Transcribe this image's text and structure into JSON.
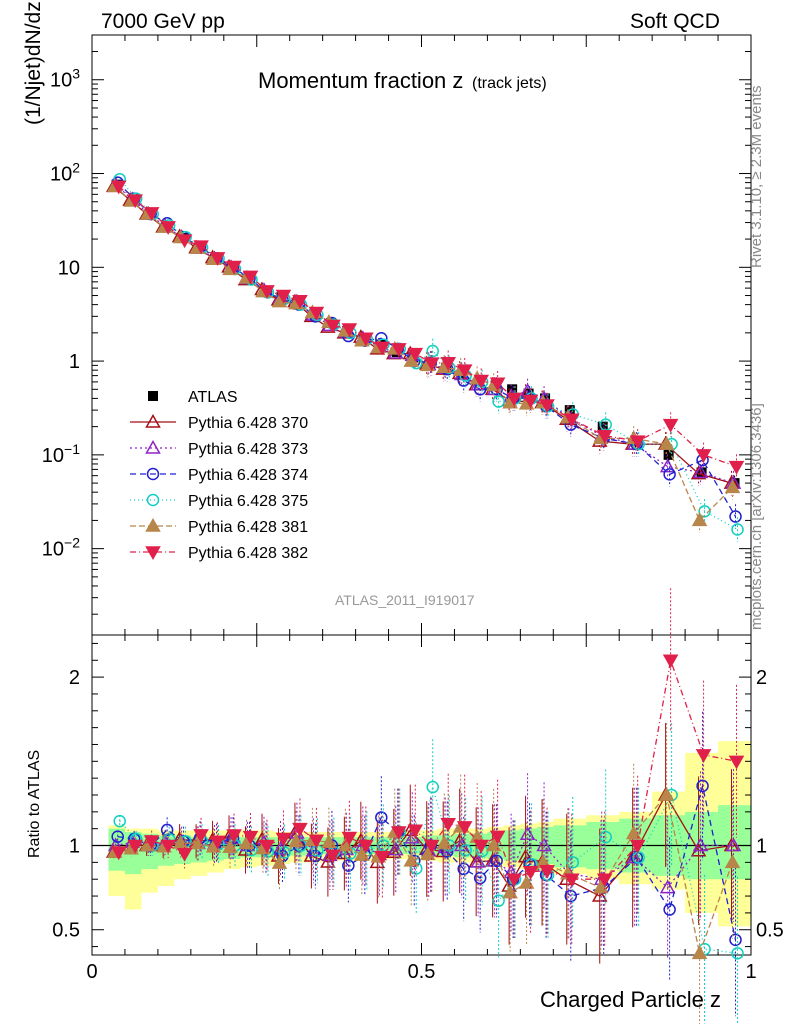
{
  "header": {
    "left": "7000 GeV pp",
    "right": "Soft QCD"
  },
  "side": {
    "rivet": "Rivet 3.1.10, ≥ 2.3M events",
    "mcplots": "mcplots.cern.ch [arXiv:1306.3436]"
  },
  "chart_data": [
    {
      "type": "line",
      "panel": "main",
      "title_main": "Momentum fraction z",
      "title_sub": "(track jets)",
      "xlabel": "Charged Particle z",
      "ylabel": "(1/Njet)dN/dz",
      "yscale": "log",
      "xlim": [
        0,
        1
      ],
      "ylim": [
        0.0012,
        3000
      ],
      "y_ticks": [
        "10^3",
        "10^2",
        "10",
        "1",
        "10^-1",
        "10^-2"
      ],
      "analysis_label": "ATLAS_2011_I919017",
      "x": [
        0.0375,
        0.0625,
        0.0875,
        0.1125,
        0.1375,
        0.1625,
        0.1875,
        0.2125,
        0.2375,
        0.2625,
        0.2875,
        0.3125,
        0.3375,
        0.3625,
        0.3875,
        0.4125,
        0.4375,
        0.4625,
        0.4875,
        0.5125,
        0.5375,
        0.5625,
        0.5875,
        0.6125,
        0.6375,
        0.6625,
        0.6875,
        0.725,
        0.775,
        0.825,
        0.875,
        0.925,
        0.975
      ],
      "series": [
        {
          "name": "ATLAS",
          "color": "#000000",
          "marker": "square",
          "dash": "",
          "values": [
            76,
            52,
            37,
            27,
            20.5,
            15.8,
            12.3,
            9.6,
            7.6,
            5.6,
            4.8,
            4.0,
            3.2,
            2.55,
            2.1,
            1.75,
            1.5,
            1.25,
            1.1,
            0.95,
            0.85,
            0.72,
            0.62,
            0.55,
            0.5,
            0.45,
            0.4,
            0.3,
            0.2,
            0.14,
            0.1,
            0.065,
            0.05
          ],
          "errors": [
            2,
            1.5,
            1,
            0.8,
            0.6,
            0.5,
            0.4,
            0.3,
            0.3,
            0.2,
            0.2,
            0.2,
            0.15,
            0.1,
            0.1,
            0.08,
            0.07,
            0.06,
            0.05,
            0.05,
            0.05,
            0.04,
            0.04,
            0.04,
            0.04,
            0.04,
            0.04,
            0.03,
            0.02,
            0.02,
            0.015,
            0.01,
            0.01
          ]
        },
        {
          "name": "Pythia 6.428 370",
          "color": "#a50f15",
          "marker": "triangle-up-open",
          "dash": "",
          "values": [
            73,
            52,
            37,
            27,
            21.3,
            16.2,
            12.7,
            10.1,
            7.4,
            5.8,
            4.5,
            4.3,
            3.0,
            2.3,
            2.0,
            1.8,
            1.35,
            1.2,
            1.2,
            0.93,
            0.82,
            0.74,
            0.56,
            0.5,
            0.38,
            0.42,
            0.36,
            0.24,
            0.14,
            0.13,
            0.13,
            0.063,
            0.05
          ]
        },
        {
          "name": "Pythia 6.428 373",
          "color": "#8e24c8",
          "marker": "triangle-up-open",
          "dash": "2,3",
          "values": [
            76,
            53,
            37,
            27.5,
            21,
            16,
            12.4,
            10,
            7.6,
            5.7,
            4.7,
            4.3,
            3.1,
            2.4,
            2.05,
            1.75,
            1.42,
            1.22,
            1.15,
            0.92,
            0.84,
            0.72,
            0.56,
            0.5,
            0.42,
            0.48,
            0.4,
            0.25,
            0.16,
            0.13,
            0.075,
            0.065,
            0.05
          ]
        },
        {
          "name": "Pythia 6.428 374",
          "color": "#2020d0",
          "marker": "circle-open",
          "dash": "6,4",
          "values": [
            80,
            54,
            37,
            29.5,
            21,
            16.5,
            12.5,
            10,
            7.6,
            5.5,
            4.5,
            4.0,
            3.0,
            2.55,
            1.85,
            1.65,
            1.75,
            1.35,
            1.0,
            0.95,
            0.82,
            0.62,
            0.5,
            0.5,
            0.4,
            0.4,
            0.33,
            0.21,
            0.15,
            0.13,
            0.062,
            0.088,
            0.022
          ]
        },
        {
          "name": "Pythia 6.428 375",
          "color": "#10d0c0",
          "marker": "circle-open",
          "dash": "1,3",
          "values": [
            87,
            54,
            37,
            28,
            21,
            16.2,
            12.4,
            9.6,
            7.4,
            5.4,
            4.6,
            4.0,
            3.1,
            2.45,
            2.0,
            1.7,
            1.5,
            1.35,
            0.95,
            1.28,
            0.85,
            0.7,
            0.6,
            0.37,
            0.4,
            0.4,
            0.33,
            0.27,
            0.21,
            0.13,
            0.13,
            0.025,
            0.016
          ]
        },
        {
          "name": "Pythia 6.428 381",
          "color": "#b8864b",
          "marker": "triangle-up",
          "dash": "6,3",
          "values": [
            73,
            51,
            37,
            26.8,
            20.8,
            16,
            12.2,
            9.5,
            7.7,
            5.5,
            4.3,
            4.1,
            3.3,
            2.6,
            2.1,
            1.65,
            1.4,
            1.35,
            1.0,
            0.9,
            0.86,
            0.8,
            0.65,
            0.55,
            0.36,
            0.35,
            0.36,
            0.25,
            0.15,
            0.15,
            0.13,
            0.02,
            0.045
          ]
        },
        {
          "name": "Pythia 6.428 382",
          "color": "#e0204a",
          "marker": "triangle-down",
          "dash": "6,3,1,3",
          "values": [
            73,
            52,
            38,
            27,
            19.5,
            16.8,
            12.6,
            10.2,
            8.0,
            5.6,
            5.0,
            4.4,
            3.3,
            2.4,
            2.2,
            1.75,
            1.4,
            1.35,
            1.2,
            0.95,
            0.96,
            0.8,
            0.62,
            0.58,
            0.4,
            0.38,
            0.34,
            0.24,
            0.16,
            0.14,
            0.21,
            0.1,
            0.075
          ]
        }
      ]
    },
    {
      "type": "line",
      "panel": "ratio",
      "ylabel": "Ratio to ATLAS",
      "ylim": [
        0.35,
        2.25
      ],
      "y_ticks": [
        "0.5",
        "1",
        "2"
      ],
      "x_ticks": [
        "0",
        "0.5",
        "1"
      ],
      "band_edges": [
        0.025,
        0.05,
        0.075,
        0.1,
        0.125,
        0.15,
        0.175,
        0.2,
        0.225,
        0.25,
        0.275,
        0.3,
        0.325,
        0.35,
        0.375,
        0.4,
        0.425,
        0.45,
        0.475,
        0.5,
        0.525,
        0.55,
        0.575,
        0.6,
        0.625,
        0.65,
        0.675,
        0.7,
        0.75,
        0.8,
        0.85,
        0.9,
        0.95,
        1.0
      ],
      "band_green": {
        "lo": [
          0.85,
          0.83,
          0.86,
          0.88,
          0.89,
          0.9,
          0.91,
          0.92,
          0.93,
          0.93,
          0.94,
          0.94,
          0.95,
          0.95,
          0.95,
          0.95,
          0.95,
          0.95,
          0.95,
          0.94,
          0.94,
          0.93,
          0.93,
          0.92,
          0.91,
          0.9,
          0.89,
          0.87,
          0.86,
          0.84,
          0.82,
          0.8,
          0.8
        ],
        "hi": [
          1.1,
          1.08,
          1.07,
          1.06,
          1.06,
          1.05,
          1.05,
          1.05,
          1.05,
          1.05,
          1.05,
          1.05,
          1.05,
          1.05,
          1.05,
          1.05,
          1.05,
          1.05,
          1.05,
          1.06,
          1.06,
          1.07,
          1.07,
          1.08,
          1.09,
          1.1,
          1.11,
          1.12,
          1.14,
          1.16,
          1.18,
          1.2,
          1.24
        ]
      },
      "band_yellow": {
        "lo": [
          0.7,
          0.62,
          0.72,
          0.76,
          0.8,
          0.82,
          0.84,
          0.86,
          0.87,
          0.88,
          0.89,
          0.9,
          0.9,
          0.91,
          0.91,
          0.91,
          0.91,
          0.92,
          0.92,
          0.91,
          0.9,
          0.9,
          0.9,
          0.88,
          0.87,
          0.86,
          0.85,
          0.83,
          0.8,
          0.77,
          0.74,
          0.6,
          0.52
        ],
        "hi": [
          1.12,
          1.1,
          1.1,
          1.09,
          1.09,
          1.09,
          1.09,
          1.09,
          1.09,
          1.09,
          1.08,
          1.08,
          1.08,
          1.08,
          1.08,
          1.08,
          1.08,
          1.08,
          1.09,
          1.09,
          1.1,
          1.1,
          1.1,
          1.11,
          1.12,
          1.13,
          1.14,
          1.16,
          1.18,
          1.2,
          1.32,
          1.55,
          1.62
        ]
      }
    }
  ]
}
